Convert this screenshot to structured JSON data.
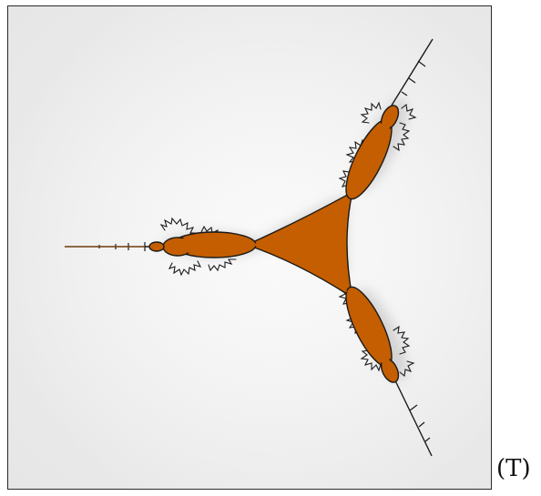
{
  "figure": {
    "panel_label": "(T)",
    "fill_color": "#c45e00",
    "edge_color": "#1a1a1a",
    "background_color": "#f1f1f1",
    "frame_color": "#2b2b2b"
  }
}
